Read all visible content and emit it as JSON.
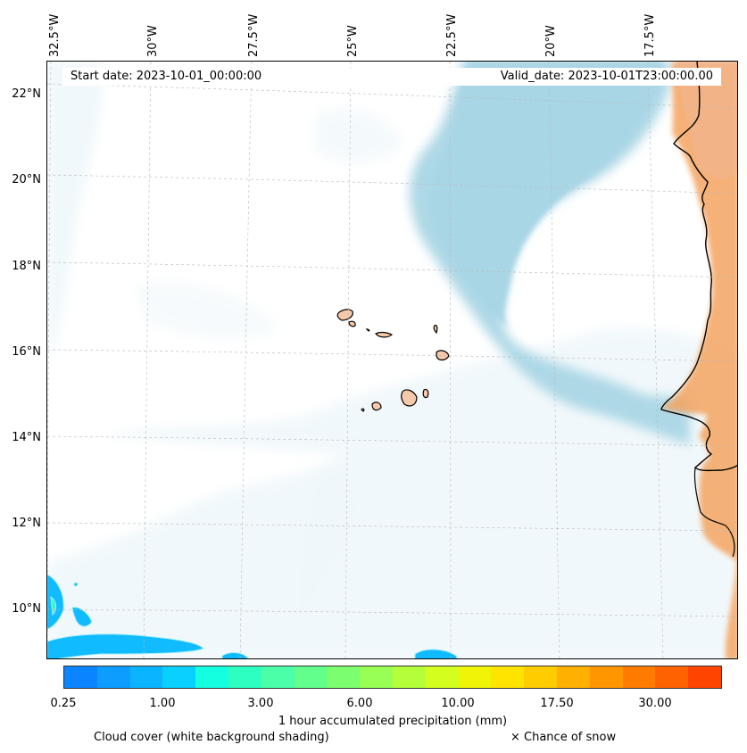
{
  "map": {
    "lon_labels": [
      "32.5°W",
      "30°W",
      "27.5°W",
      "25°W",
      "22.5°W",
      "20°W",
      "17.5°W"
    ],
    "lat_labels": [
      "22°N",
      "20°N",
      "18°N",
      "16°N",
      "14°N",
      "12°N",
      "10°N"
    ],
    "start_date": "Start date: 2023-10-01_00:00:00",
    "valid_date": "Valid_date: 2023-10-01T23:00:00.00",
    "colors": {
      "cloud": "#add8e6",
      "land": "#f4a460",
      "coast": "#000000"
    }
  },
  "colorbar": {
    "title": "1 hour accumulated precipitation (mm)",
    "tick_labels": [
      "0.25",
      "1.00",
      "3.00",
      "6.00",
      "10.00",
      "17.50",
      "30.00"
    ],
    "colors": [
      "#0a84ff",
      "#0d9cff",
      "#0bb4ff",
      "#0ad0ff",
      "#14ffe0",
      "#2dffc0",
      "#4bffa8",
      "#62ff8c",
      "#7cff6e",
      "#98ff54",
      "#b4ff3a",
      "#d4ff1e",
      "#f0f508",
      "#ffe400",
      "#ffcc00",
      "#ffb000",
      "#ff9600",
      "#ff7c00",
      "#ff6200",
      "#ff4400"
    ]
  },
  "notes": {
    "cloud_cover": "Cloud cover (white background shading)",
    "snow": "× Chance of snow"
  }
}
